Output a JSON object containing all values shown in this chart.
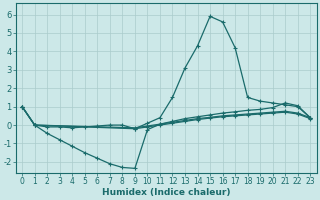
{
  "xlabel": "Humidex (Indice chaleur)",
  "bg_color": "#cce8e8",
  "grid_color": "#aacccc",
  "line_color": "#1a6b6b",
  "xlim": [
    -0.5,
    23.5
  ],
  "ylim": [
    -2.6,
    6.6
  ],
  "xticks": [
    0,
    1,
    2,
    3,
    4,
    5,
    6,
    7,
    8,
    9,
    10,
    11,
    12,
    13,
    14,
    15,
    16,
    17,
    18,
    19,
    20,
    21,
    22,
    23
  ],
  "yticks": [
    -2,
    -1,
    0,
    1,
    2,
    3,
    4,
    5,
    6
  ],
  "curve_peaked_x": [
    0,
    1,
    2,
    3,
    4,
    5,
    6,
    7,
    8,
    9,
    10,
    11,
    12,
    13,
    14,
    15,
    16,
    17,
    18,
    19,
    20,
    21,
    22,
    23
  ],
  "curve_peaked_y": [
    1.0,
    0.0,
    -0.1,
    -0.1,
    -0.15,
    -0.1,
    -0.05,
    0.0,
    0.0,
    -0.2,
    0.1,
    0.4,
    1.5,
    3.1,
    4.3,
    5.9,
    5.6,
    4.2,
    1.5,
    1.3,
    1.2,
    1.1,
    1.0,
    0.4
  ],
  "curve_deep_x": [
    0,
    1,
    2,
    3,
    4,
    5,
    6,
    7,
    8,
    9,
    10,
    11,
    12,
    13,
    14,
    15,
    16,
    17,
    18,
    19,
    20,
    21,
    22,
    23
  ],
  "curve_deep_y": [
    1.0,
    0.0,
    -0.45,
    -0.8,
    -1.15,
    -1.5,
    -1.8,
    -2.1,
    -2.3,
    -2.35,
    -0.25,
    0.05,
    0.2,
    0.35,
    0.45,
    0.55,
    0.65,
    0.72,
    0.8,
    0.85,
    0.95,
    1.2,
    1.05,
    0.4
  ],
  "curve_flat1_x": [
    0,
    1,
    9,
    10,
    11,
    12,
    13,
    14,
    15,
    16,
    17,
    18,
    19,
    20,
    21,
    22,
    23
  ],
  "curve_flat1_y": [
    1.0,
    0.0,
    -0.2,
    -0.1,
    0.0,
    0.1,
    0.2,
    0.3,
    0.38,
    0.45,
    0.5,
    0.55,
    0.6,
    0.65,
    0.7,
    0.6,
    0.35
  ],
  "curve_flat2_x": [
    0,
    1,
    9,
    10,
    11,
    12,
    13,
    14,
    15,
    16,
    17,
    18,
    19,
    20,
    21,
    22,
    23
  ],
  "curve_flat2_y": [
    1.0,
    0.0,
    -0.15,
    -0.05,
    0.05,
    0.15,
    0.25,
    0.35,
    0.42,
    0.5,
    0.55,
    0.6,
    0.65,
    0.7,
    0.75,
    0.65,
    0.4
  ]
}
